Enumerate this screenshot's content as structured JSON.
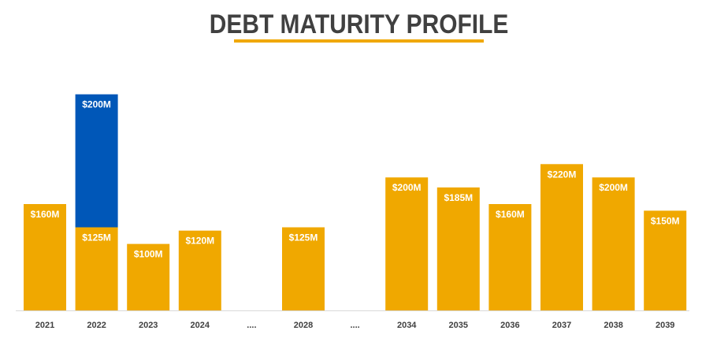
{
  "title": "DEBT MATURITY PROFILE",
  "colors": {
    "primary": "#f0a800",
    "highlight": "#0057b8",
    "axis": "#d9d9d9",
    "text": "#404040"
  },
  "chart_data": {
    "type": "bar",
    "title": "DEBT MATURITY PROFILE",
    "xlabel": "",
    "ylabel": "",
    "stacked": true,
    "grid": false,
    "ylim": [
      0,
      355
    ],
    "categories": [
      "2021",
      "2022",
      "2023",
      "2024",
      "....",
      "2028",
      "....",
      "2034",
      "2035",
      "2036",
      "2037",
      "2038",
      "2039"
    ],
    "series": [
      {
        "color": "#f0a800",
        "values": [
          160,
          125,
          100,
          120,
          null,
          125,
          null,
          200,
          185,
          160,
          220,
          200,
          150
        ],
        "labels": [
          "$160M",
          "$125M",
          "$100M",
          "$120M",
          "",
          "$125M",
          "",
          "$200M",
          "$185M",
          "$160M",
          "$220M",
          "$200M",
          "$150M"
        ]
      },
      {
        "color": "#0057b8",
        "values": [
          null,
          200,
          null,
          null,
          null,
          null,
          null,
          null,
          null,
          null,
          null,
          null,
          null
        ],
        "labels": [
          "",
          "$200M",
          "",
          "",
          "",
          "",
          "",
          "",
          "",
          "",
          "",
          "",
          ""
        ]
      }
    ]
  }
}
